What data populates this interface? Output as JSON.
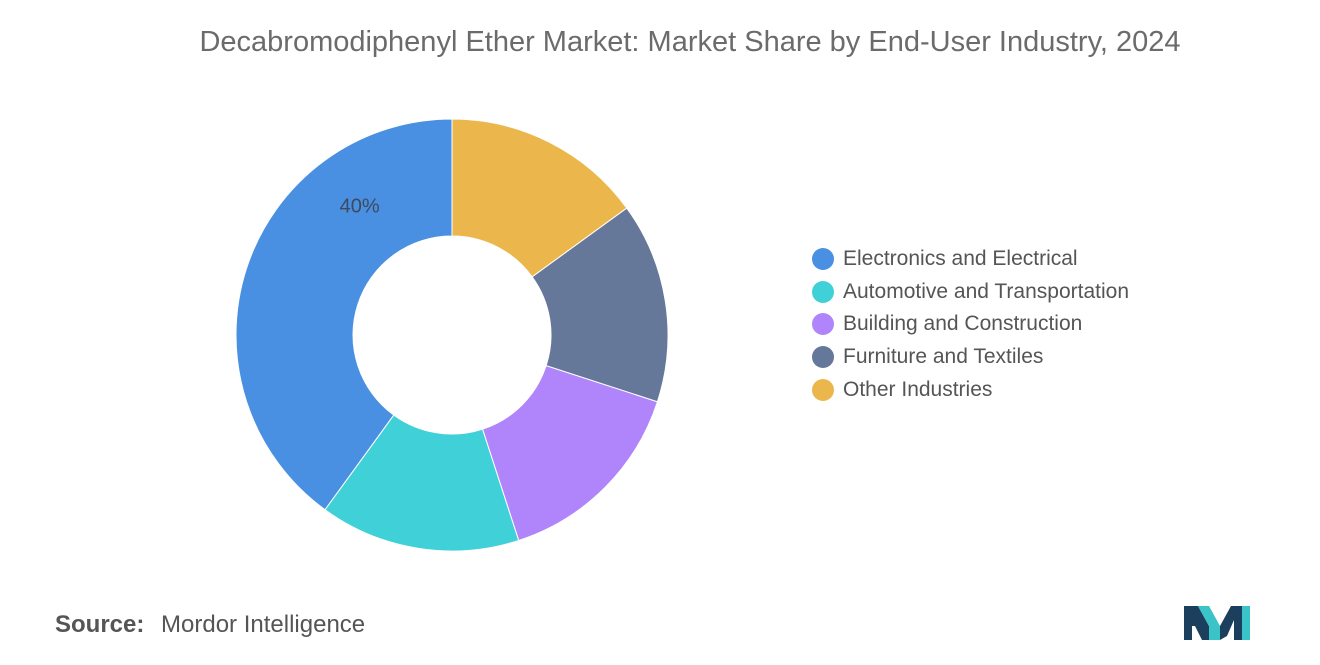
{
  "chart_data": {
    "type": "pie",
    "variant": "donut",
    "title": "Decabromodiphenyl Ether Market: Market Share by End-User Industry, 2024",
    "categories": [
      "Electronics and Electrical",
      "Automotive and Transportation",
      "Building and Construction",
      "Furniture and Textiles",
      "Other Industries"
    ],
    "values": [
      40,
      15,
      15,
      15,
      15
    ],
    "colors": [
      "#4a90e2",
      "#40d0d8",
      "#b084fa",
      "#66789a",
      "#ebb74d"
    ],
    "data_labels": [
      {
        "category": "Electronics and Electrical",
        "text": "40%"
      }
    ],
    "legend_position": "right"
  },
  "source": {
    "label": "Source:",
    "value": "Mordor Intelligence"
  },
  "logo": {
    "icon": "mordor-intelligence-logo-icon",
    "colors": [
      "#1d3f5e",
      "#3bc4c8"
    ]
  }
}
